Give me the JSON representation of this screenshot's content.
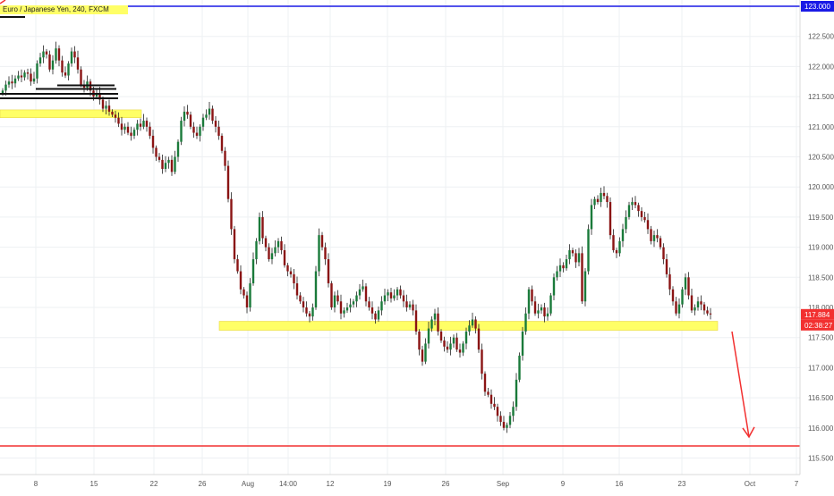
{
  "symbol": {
    "title": "Euro / Japanese Yen, 240, FXCM"
  },
  "chart_data": {
    "type": "candlestick",
    "ylim": [
      115.25,
      123.1
    ],
    "y_ticks": [
      123.0,
      122.5,
      122.0,
      121.5,
      121.0,
      120.5,
      120.0,
      119.5,
      119.0,
      118.5,
      118.0,
      117.5,
      117.0,
      116.5,
      116.0,
      115.5
    ],
    "y_tick_labels": [
      "123.000",
      "122.500",
      "122.000",
      "121.500",
      "121.000",
      "120.500",
      "120.000",
      "119.500",
      "119.000",
      "118.500",
      "118.000",
      "117.500",
      "117.000",
      "116.500",
      "116.000",
      "115.500"
    ],
    "x_ticks": [
      "8",
      "15",
      "22",
      "26",
      "Aug",
      "14:00",
      "12",
      "19",
      "26",
      "Sep",
      "9",
      "16",
      "23",
      "Oct",
      "7"
    ],
    "last_price": "117.884",
    "countdown": "02:38:27",
    "horizontal_lines": [
      {
        "price": 123.0,
        "color": "#1a1ae6"
      },
      {
        "price": 115.7,
        "color": "#f23030"
      }
    ],
    "zones": [
      {
        "start_bar": 0,
        "end_bar": 38,
        "top": 121.28,
        "bottom": 121.15,
        "color": "#ffff66"
      },
      {
        "start_bar": 70,
        "end_bar": 222,
        "top": 117.77,
        "bottom": 117.62,
        "color": "#ffff66"
      }
    ],
    "arrow": {
      "from_price": 117.6,
      "to_price": 115.85,
      "color": "#f23030"
    },
    "closes": [
      121.6,
      121.7,
      121.75,
      121.72,
      121.8,
      121.85,
      121.82,
      121.9,
      121.88,
      121.75,
      121.8,
      122.05,
      122.15,
      122.25,
      122.2,
      121.95,
      122.1,
      122.3,
      122.1,
      121.9,
      121.85,
      122.05,
      122.25,
      122.15,
      121.95,
      121.7,
      121.65,
      121.75,
      121.6,
      121.5,
      121.55,
      121.45,
      121.3,
      121.35,
      121.25,
      121.2,
      121.15,
      121.05,
      120.95,
      121.0,
      120.9,
      120.85,
      120.95,
      121.05,
      121.0,
      121.1,
      121.0,
      120.85,
      120.65,
      120.5,
      120.45,
      120.3,
      120.4,
      120.45,
      120.25,
      120.5,
      120.75,
      121.1,
      121.25,
      121.2,
      121.0,
      120.9,
      120.85,
      121.0,
      121.15,
      121.2,
      121.3,
      121.1,
      121.0,
      120.85,
      120.6,
      120.35,
      119.8,
      119.3,
      118.8,
      118.6,
      118.3,
      118.2,
      118.0,
      118.4,
      118.8,
      119.1,
      119.5,
      119.15,
      119.0,
      118.8,
      118.9,
      119.0,
      119.1,
      118.95,
      118.7,
      118.6,
      118.55,
      118.4,
      118.2,
      118.1,
      118.0,
      117.9,
      117.85,
      118.0,
      118.6,
      119.2,
      119.0,
      118.8,
      118.4,
      118.0,
      118.2,
      118.1,
      117.9,
      117.95,
      118.0,
      118.05,
      118.1,
      118.2,
      118.3,
      118.35,
      118.1,
      118.0,
      117.9,
      117.8,
      117.95,
      118.1,
      118.2,
      118.25,
      118.15,
      118.2,
      118.3,
      118.2,
      118.1,
      118.0,
      118.05,
      117.95,
      117.6,
      117.3,
      117.1,
      117.4,
      117.65,
      117.8,
      117.9,
      117.6,
      117.45,
      117.35,
      117.3,
      117.4,
      117.5,
      117.3,
      117.25,
      117.4,
      117.6,
      117.7,
      117.8,
      117.65,
      117.3,
      116.9,
      116.6,
      116.55,
      116.4,
      116.35,
      116.2,
      116.1,
      116.0,
      116.05,
      116.2,
      116.35,
      116.8,
      117.2,
      117.6,
      117.9,
      118.3,
      118.1,
      117.9,
      117.95,
      118.0,
      117.85,
      117.9,
      118.2,
      118.5,
      118.6,
      118.7,
      118.65,
      118.8,
      118.95,
      118.9,
      118.75,
      118.9,
      118.1,
      118.6,
      119.3,
      119.7,
      119.8,
      119.75,
      119.9,
      119.85,
      119.75,
      119.2,
      118.95,
      118.9,
      119.1,
      119.3,
      119.5,
      119.7,
      119.75,
      119.7,
      119.6,
      119.5,
      119.45,
      119.3,
      119.1,
      119.2,
      119.15,
      119.0,
      118.8,
      118.55,
      118.3,
      118.1,
      117.9,
      118.05,
      118.3,
      118.5,
      118.2,
      117.95,
      118.0,
      118.1,
      118.05,
      117.95,
      117.9,
      117.884
    ]
  }
}
